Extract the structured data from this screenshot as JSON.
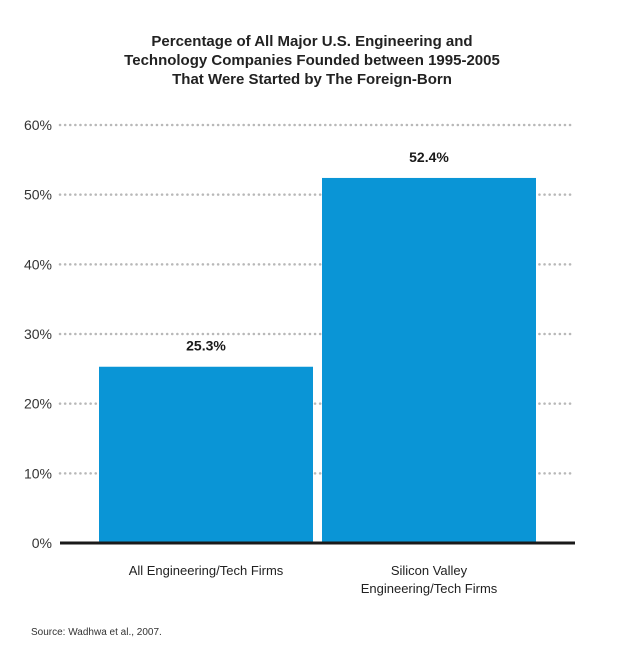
{
  "chart_data": {
    "type": "bar",
    "title_lines": [
      "Percentage of All Major U.S. Engineering and",
      "Technology Companies Founded between 1995-2005",
      "That Were Started by The Foreign-Born"
    ],
    "categories": [
      [
        "All Engineering/Tech Firms"
      ],
      [
        "Silicon Valley",
        "Engineering/Tech Firms"
      ]
    ],
    "values": [
      25.3,
      52.4
    ],
    "value_labels": [
      "25.3%",
      "52.4%"
    ],
    "ylim": [
      0,
      60
    ],
    "yticks": [
      0,
      10,
      20,
      30,
      40,
      50,
      60
    ],
    "ytick_labels": [
      "0%",
      "10%",
      "20%",
      "30%",
      "40%",
      "50%",
      "60%"
    ],
    "grid": "dotted horizontal",
    "bar_color": "#0a95d6",
    "grid_color": "#b8b8b8",
    "axis_color": "#1a1a1a"
  },
  "source": "Source: Wadhwa et al., 2007."
}
